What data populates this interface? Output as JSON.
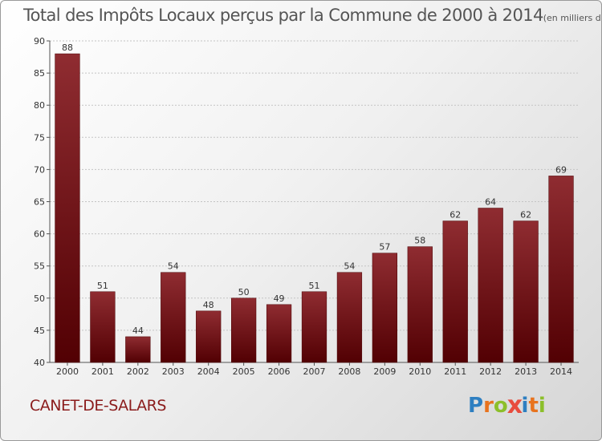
{
  "chart_data": {
    "type": "bar",
    "title": "Total des Impôts Locaux perçus par la Commune de 2000 à 2014",
    "subtitle": "(en milliers d'€)",
    "categories": [
      "2000",
      "2001",
      "2002",
      "2003",
      "2004",
      "2005",
      "2006",
      "2007",
      "2008",
      "2009",
      "2010",
      "2011",
      "2012",
      "2013",
      "2014"
    ],
    "values": [
      88,
      51,
      44,
      54,
      48,
      50,
      49,
      51,
      54,
      57,
      58,
      62,
      64,
      62,
      69
    ],
    "data_labels": [
      "88",
      "51",
      "44",
      "54",
      "48",
      "50",
      "49",
      "51",
      "54",
      "57",
      "58",
      "62",
      "64",
      "62",
      "69"
    ],
    "ylim": [
      40,
      90
    ],
    "yticks": [
      40,
      45,
      50,
      55,
      60,
      65,
      70,
      75,
      80,
      85,
      90
    ],
    "ytick_labels": [
      "40",
      "45",
      "50",
      "55",
      "60",
      "65",
      "70",
      "75",
      "80",
      "85",
      "90"
    ],
    "grid": true,
    "bar_color": "#7a1518",
    "xlabel": "",
    "ylabel": ""
  },
  "footer": {
    "commune": "CANET-DE-SALARS",
    "logo_letters": [
      "P",
      "r",
      "o",
      "x",
      "i",
      "t",
      "i"
    ],
    "logo_colors": [
      "#2e7fc1",
      "#e8731e",
      "#8cbf2a",
      "#e84c3d",
      "#2e7fc1",
      "#e8731e",
      "#8cbf2a"
    ]
  }
}
